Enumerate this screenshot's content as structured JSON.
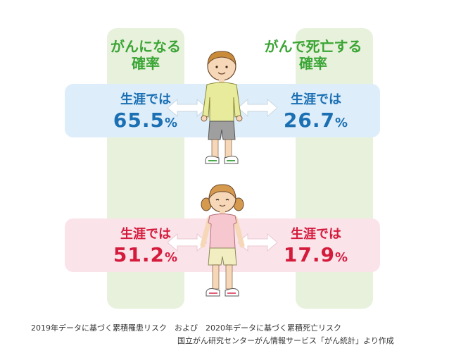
{
  "chart_data": {
    "type": "table",
    "columns": [
      "がんになる確率",
      "がんで死亡する確率"
    ],
    "rows": [
      {
        "group": "男性",
        "incidence": {
          "label": "生涯では",
          "value": 65.5,
          "unit": "%"
        },
        "mortality": {
          "label": "生涯では",
          "value": 26.7,
          "unit": "%"
        }
      },
      {
        "group": "女性",
        "incidence": {
          "label": "生涯では",
          "value": 51.2,
          "unit": "%"
        },
        "mortality": {
          "label": "生涯では",
          "value": 17.9,
          "unit": "%"
        }
      }
    ]
  },
  "headers": {
    "left_line1": "がんになる",
    "left_line2": "確率",
    "right_line1": "がんで死亡する",
    "right_line2": "確率"
  },
  "boy": {
    "left_label": "生涯では",
    "left_value": "65.5",
    "left_unit": "%",
    "right_label": "生涯では",
    "right_value": "26.7",
    "right_unit": "%"
  },
  "girl": {
    "left_label": "生涯では",
    "left_value": "51.2",
    "left_unit": "%",
    "right_label": "生涯では",
    "right_value": "17.9",
    "right_unit": "%"
  },
  "captions": {
    "line1": "2019年データに基づく累積罹患リスク　および　2020年データに基づく累積死亡リスク",
    "line2": "国立がん研究センターがん情報サービス「がん統計」より作成"
  },
  "colors": {
    "header": "#3aa535",
    "boy_text": "#1b6fb3",
    "girl_text": "#d41b3c",
    "boy_band": "#ddeefa",
    "girl_band": "#fbe3ea",
    "column_band": "#e8f1dc"
  },
  "icons": [
    "boy-illustration",
    "girl-illustration",
    "double-arrow-icon"
  ]
}
